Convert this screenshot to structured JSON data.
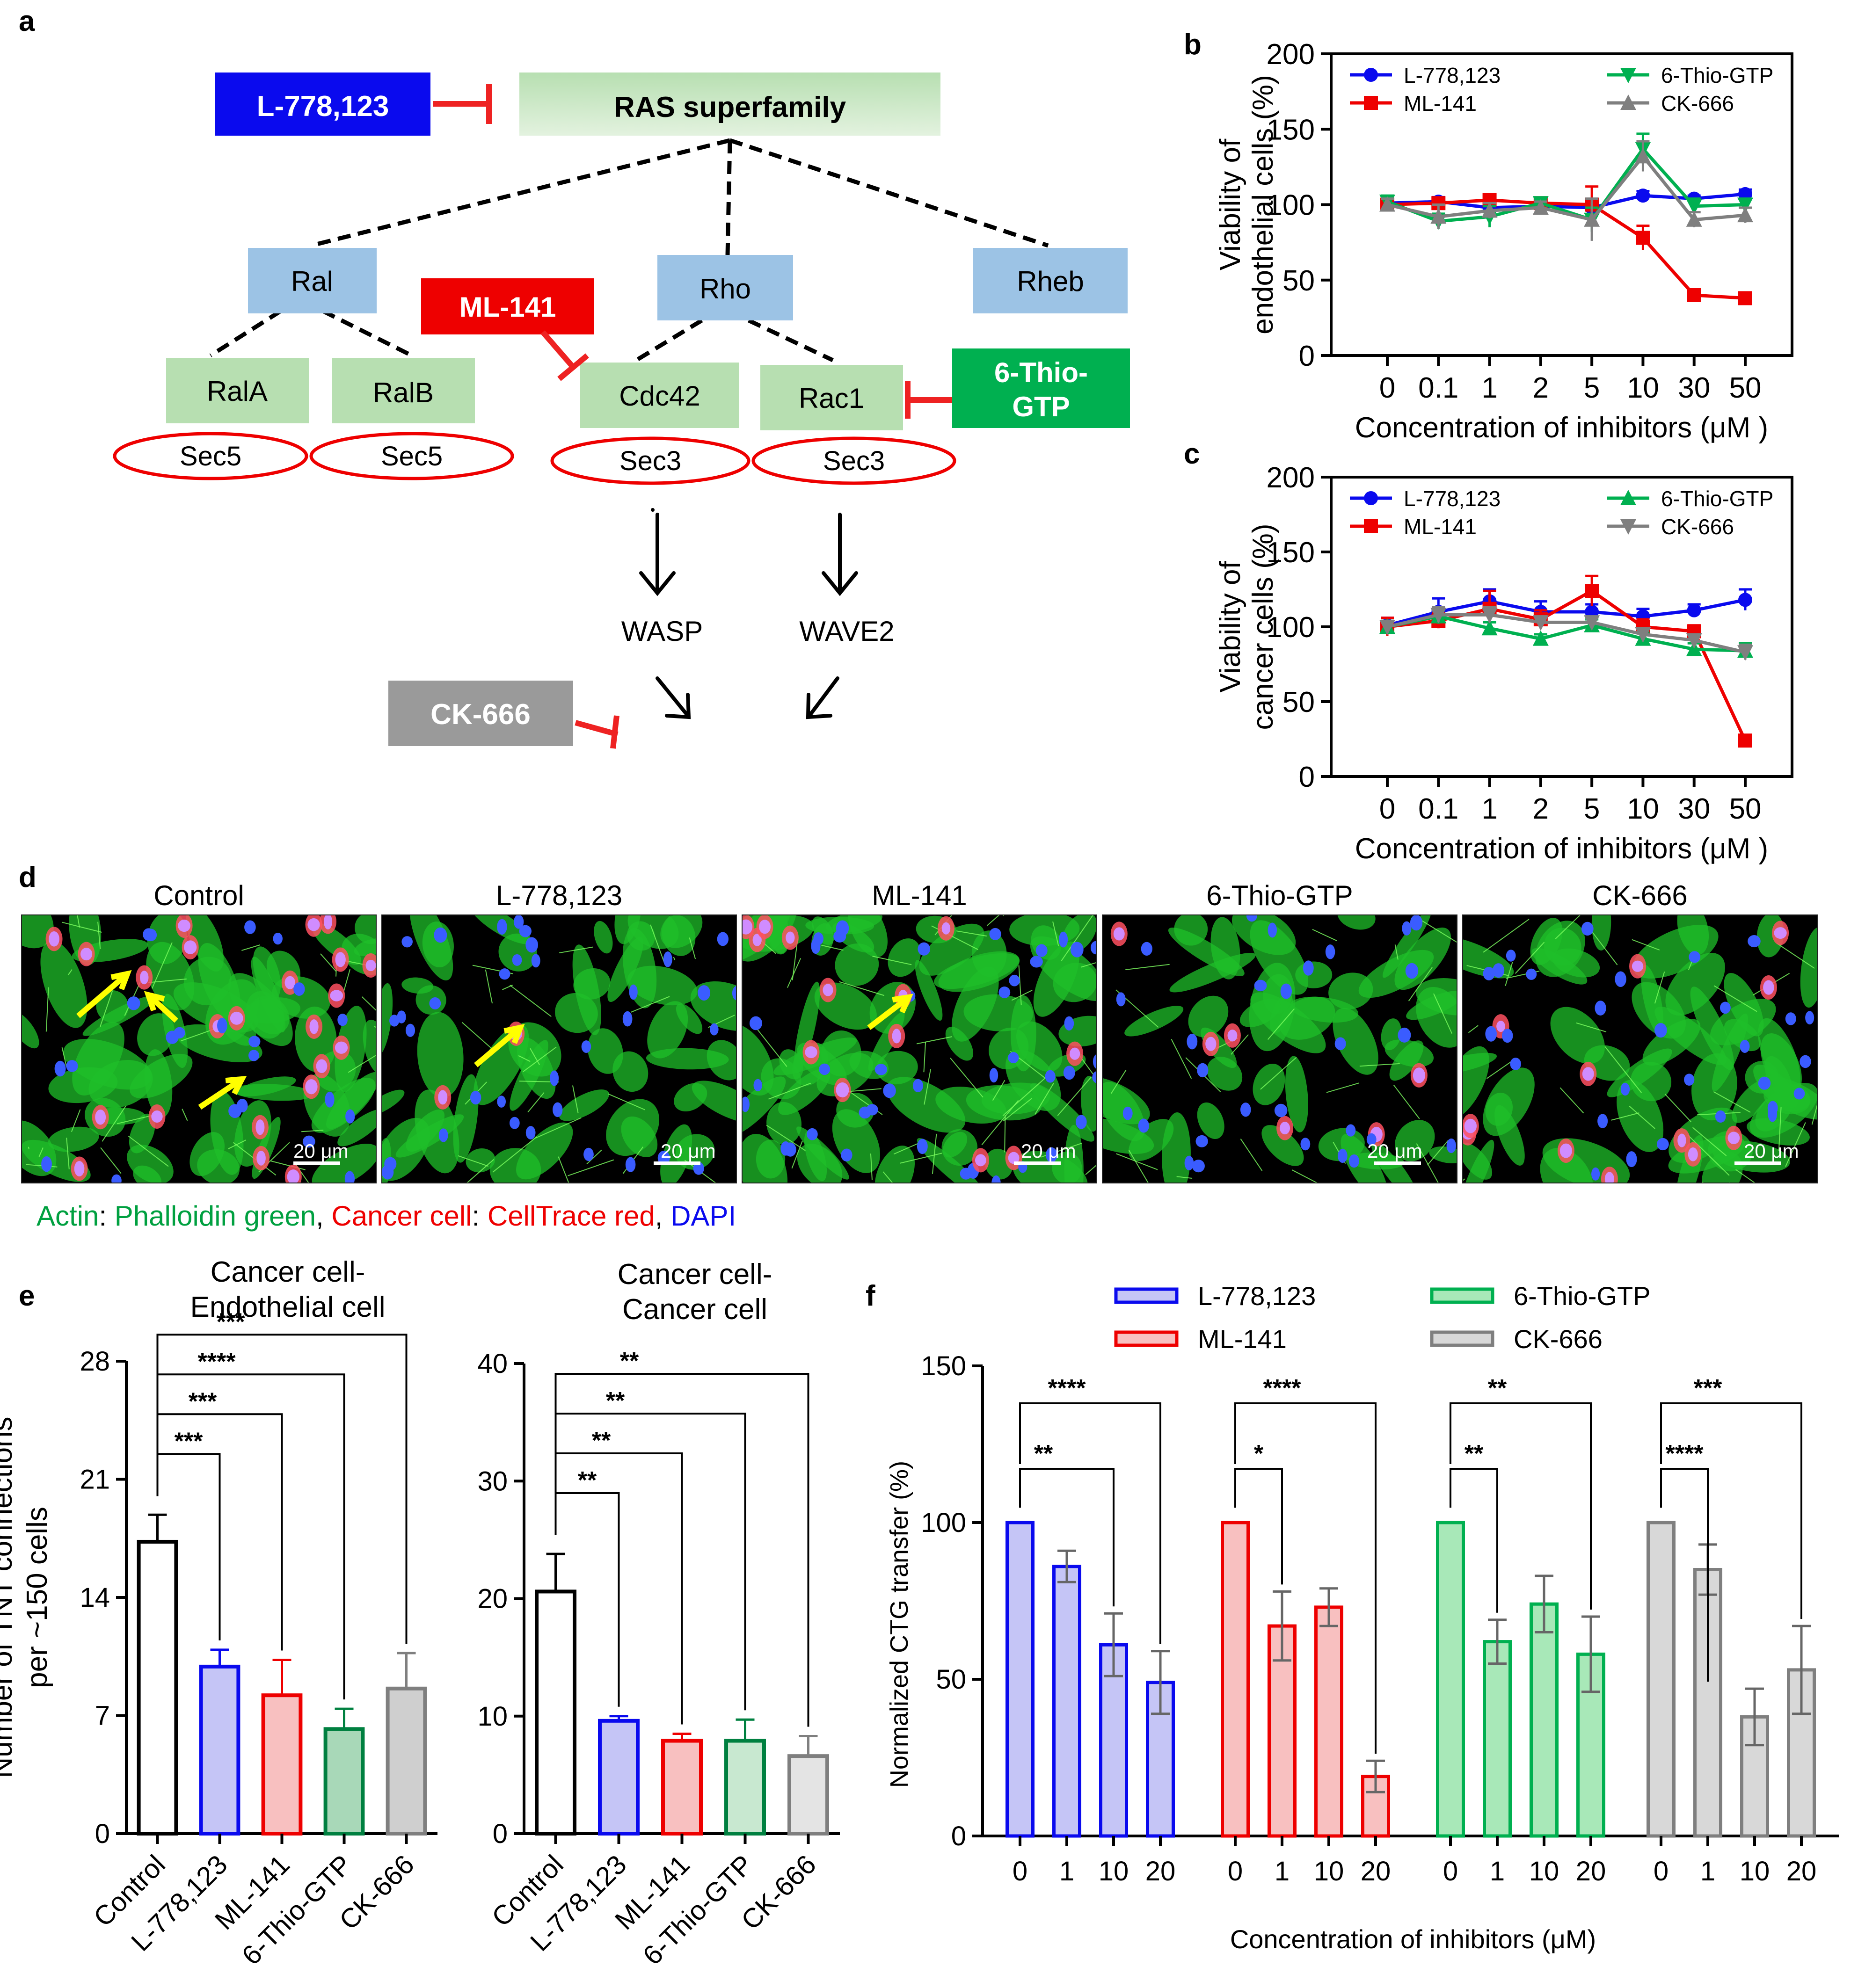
{
  "panels": {
    "a": "a",
    "b": "b",
    "c": "c",
    "d": "d",
    "e": "e",
    "f": "f"
  },
  "diagram": {
    "inhibitor_L778": "L-778,123",
    "ras": "RAS superfamily",
    "ral": "Ral",
    "rho": "Rho",
    "rheb": "Rheb",
    "ml141": "ML-141",
    "rala": "RalA",
    "ralb": "RalB",
    "cdc42": "Cdc42",
    "rac1": "Rac1",
    "thio1": "6-Thio-",
    "thio2": "GTP",
    "sec5a": "Sec5",
    "sec5b": "Sec5",
    "sec3a": "Sec3",
    "sec3b": "Sec3",
    "wasp": "WASP",
    "wave2": "WAVE2",
    "ck666": "CK-666",
    "colors": {
      "blue": "#0a0aee",
      "red": "#ee0000",
      "green": "#00b050",
      "gray": "#9a9a9a",
      "lightblue": "#9cc3e5",
      "lightgreen": "#b7dfb1"
    }
  },
  "images": {
    "titles": [
      "Control",
      "L-778,123",
      "ML-141",
      "6-Thio-GTP",
      "CK-666"
    ],
    "scalebar": "20 μm",
    "caption": {
      "actin_label": "Actin",
      "sep1": ": ",
      "actin_stain": "Phalloidin green",
      "sep2": ", ",
      "cancer_label": "Cancer cell",
      "sep3": ": ",
      "cancer_stain": "CellTrace red",
      "sep4": ", ",
      "dapi": "DAPI"
    }
  },
  "chart_data": [
    {
      "id": "b",
      "type": "line",
      "ylabel_line1": "Viability of",
      "ylabel_line2": "endothelial cells (%)",
      "xlabel": "Concentration of inhibitors (μM )",
      "categories": [
        "0",
        "0.1",
        "1",
        "2",
        "5",
        "10",
        "30",
        "50"
      ],
      "ylim": [
        0,
        200
      ],
      "yticks": [
        0,
        50,
        100,
        150,
        200
      ],
      "series": [
        {
          "name": "L-778,123",
          "color": "#0a0aee",
          "marker": "circle",
          "values": [
            101,
            102,
            98,
            99,
            98,
            106,
            104,
            107
          ],
          "err": [
            4,
            3,
            3,
            3,
            3,
            3,
            2,
            3
          ]
        },
        {
          "name": "ML-141",
          "color": "#ee0000",
          "marker": "square",
          "values": [
            100,
            101,
            103,
            101,
            100,
            78,
            40,
            38
          ],
          "err": [
            3,
            3,
            3,
            3,
            12,
            8,
            2,
            2
          ]
        },
        {
          "name": "6-Thio-GTP",
          "color": "#00b050",
          "marker": "tri-down",
          "values": [
            102,
            89,
            92,
            101,
            90,
            137,
            99,
            100
          ],
          "err": [
            4,
            5,
            7,
            3,
            8,
            10,
            5,
            4
          ]
        },
        {
          "name": "CK-666",
          "color": "#7f7f7f",
          "marker": "tri-up",
          "values": [
            100,
            92,
            96,
            98,
            90,
            132,
            90,
            93
          ],
          "err": [
            4,
            8,
            5,
            4,
            14,
            10,
            5,
            5
          ]
        }
      ]
    },
    {
      "id": "c",
      "type": "line",
      "ylabel_line1": "Viability of",
      "ylabel_line2": "cancer cells (%)",
      "xlabel": "Concentration of inhibitors (μM )",
      "categories": [
        "0",
        "0.1",
        "1",
        "2",
        "5",
        "10",
        "30",
        "50"
      ],
      "ylim": [
        0,
        200
      ],
      "yticks": [
        0,
        50,
        100,
        150,
        200
      ],
      "series": [
        {
          "name": "L-778,123",
          "color": "#0a0aee",
          "marker": "circle",
          "values": [
            101,
            110,
            117,
            110,
            110,
            107,
            111,
            118
          ],
          "err": [
            5,
            9,
            8,
            7,
            5,
            5,
            4,
            7
          ]
        },
        {
          "name": "ML-141",
          "color": "#ee0000",
          "marker": "square",
          "values": [
            100,
            104,
            112,
            105,
            124,
            100,
            97,
            24
          ],
          "err": [
            6,
            5,
            12,
            6,
            10,
            5,
            4,
            3
          ]
        },
        {
          "name": "6-Thio-GTP",
          "color": "#00b050",
          "marker": "tri-up",
          "values": [
            100,
            107,
            99,
            92,
            101,
            92,
            85,
            84
          ],
          "err": [
            4,
            5,
            4,
            3,
            4,
            4,
            4,
            5
          ]
        },
        {
          "name": "CK-666",
          "color": "#7f7f7f",
          "marker": "tri-down",
          "values": [
            100,
            108,
            108,
            103,
            103,
            95,
            91,
            83
          ],
          "err": [
            4,
            5,
            5,
            4,
            4,
            4,
            4,
            5
          ]
        }
      ]
    },
    {
      "id": "e1",
      "type": "bar",
      "title_line1": "Cancer cell-",
      "title_line2": "Endothelial cell",
      "ylabel_line1": "Number of TNT connections",
      "ylabel_line2": "per ~150 cells",
      "categories": [
        "Control",
        "L-778,123",
        "ML-141",
        "6-Thio-GTP",
        "CK-666"
      ],
      "values": [
        17.3,
        9.9,
        8.2,
        6.2,
        8.6
      ],
      "err": [
        1.6,
        1.0,
        2.1,
        1.2,
        2.1
      ],
      "ylim": [
        0,
        28
      ],
      "yticks": [
        0,
        7,
        14,
        21,
        28
      ],
      "significance": [
        "***",
        "***",
        "****",
        "***"
      ],
      "colors": [
        "#000000",
        "#0a0aee",
        "#ee0000",
        "#008040",
        "#7f7f7f"
      ],
      "fills": [
        "#ffffff",
        "#c5c5f6",
        "#f8c0c0",
        "#a8d8b8",
        "#cfcfcf"
      ]
    },
    {
      "id": "e2",
      "type": "bar",
      "title_line1": "Cancer cell-",
      "title_line2": "Cancer cell",
      "categories": [
        "Control",
        "L-778,123",
        "ML-141",
        "6-Thio-GTP",
        "CK-666"
      ],
      "values": [
        20.6,
        9.6,
        7.9,
        7.9,
        6.6
      ],
      "err": [
        3.2,
        0.4,
        0.6,
        1.8,
        1.7
      ],
      "ylim": [
        0,
        40
      ],
      "yticks": [
        0,
        10,
        20,
        30,
        40
      ],
      "significance": [
        "**",
        "**",
        "**",
        "**"
      ],
      "colors": [
        "#000000",
        "#0a0aee",
        "#ee0000",
        "#008040",
        "#7f7f7f"
      ],
      "fills": [
        "#ffffff",
        "#c5c5f6",
        "#f8c0c0",
        "#c8e8d0",
        "#e4e4e4"
      ]
    },
    {
      "id": "f",
      "type": "bar",
      "ylabel": "Normalized CTG transfer (%)",
      "xlabel": "Concentration of inhibitors (μM)",
      "categories": [
        "0",
        "1",
        "10",
        "20"
      ],
      "ylim": [
        0,
        150
      ],
      "yticks": [
        0,
        50,
        100,
        150
      ],
      "legend": [
        "L-778,123",
        "ML-141",
        "6-Thio-GTP",
        "CK-666"
      ],
      "series": [
        {
          "name": "L-778,123",
          "color": "#0a0aee",
          "fill": "#c5c5f6",
          "values": [
            100,
            86,
            61,
            49
          ],
          "err": [
            0,
            5,
            10,
            10
          ],
          "sig_top": "****",
          "sig_low": "**"
        },
        {
          "name": "ML-141",
          "color": "#ee0000",
          "fill": "#f8c0c0",
          "values": [
            100,
            67,
            73,
            19
          ],
          "err": [
            0,
            11,
            6,
            5
          ],
          "sig_top": "****",
          "sig_low": "*"
        },
        {
          "name": "6-Thio-GTP",
          "color": "#00b050",
          "fill": "#a8e8b8",
          "values": [
            100,
            62,
            74,
            58
          ],
          "err": [
            0,
            7,
            9,
            12
          ],
          "sig_top": "**",
          "sig_low": "**"
        },
        {
          "name": "CK-666",
          "color": "#7f7f7f",
          "fill": "#d8d8d8",
          "values": [
            100,
            85,
            38,
            53
          ],
          "err": [
            0,
            8,
            9,
            14
          ],
          "sig_top": "***",
          "sig_low": "****"
        }
      ]
    }
  ]
}
